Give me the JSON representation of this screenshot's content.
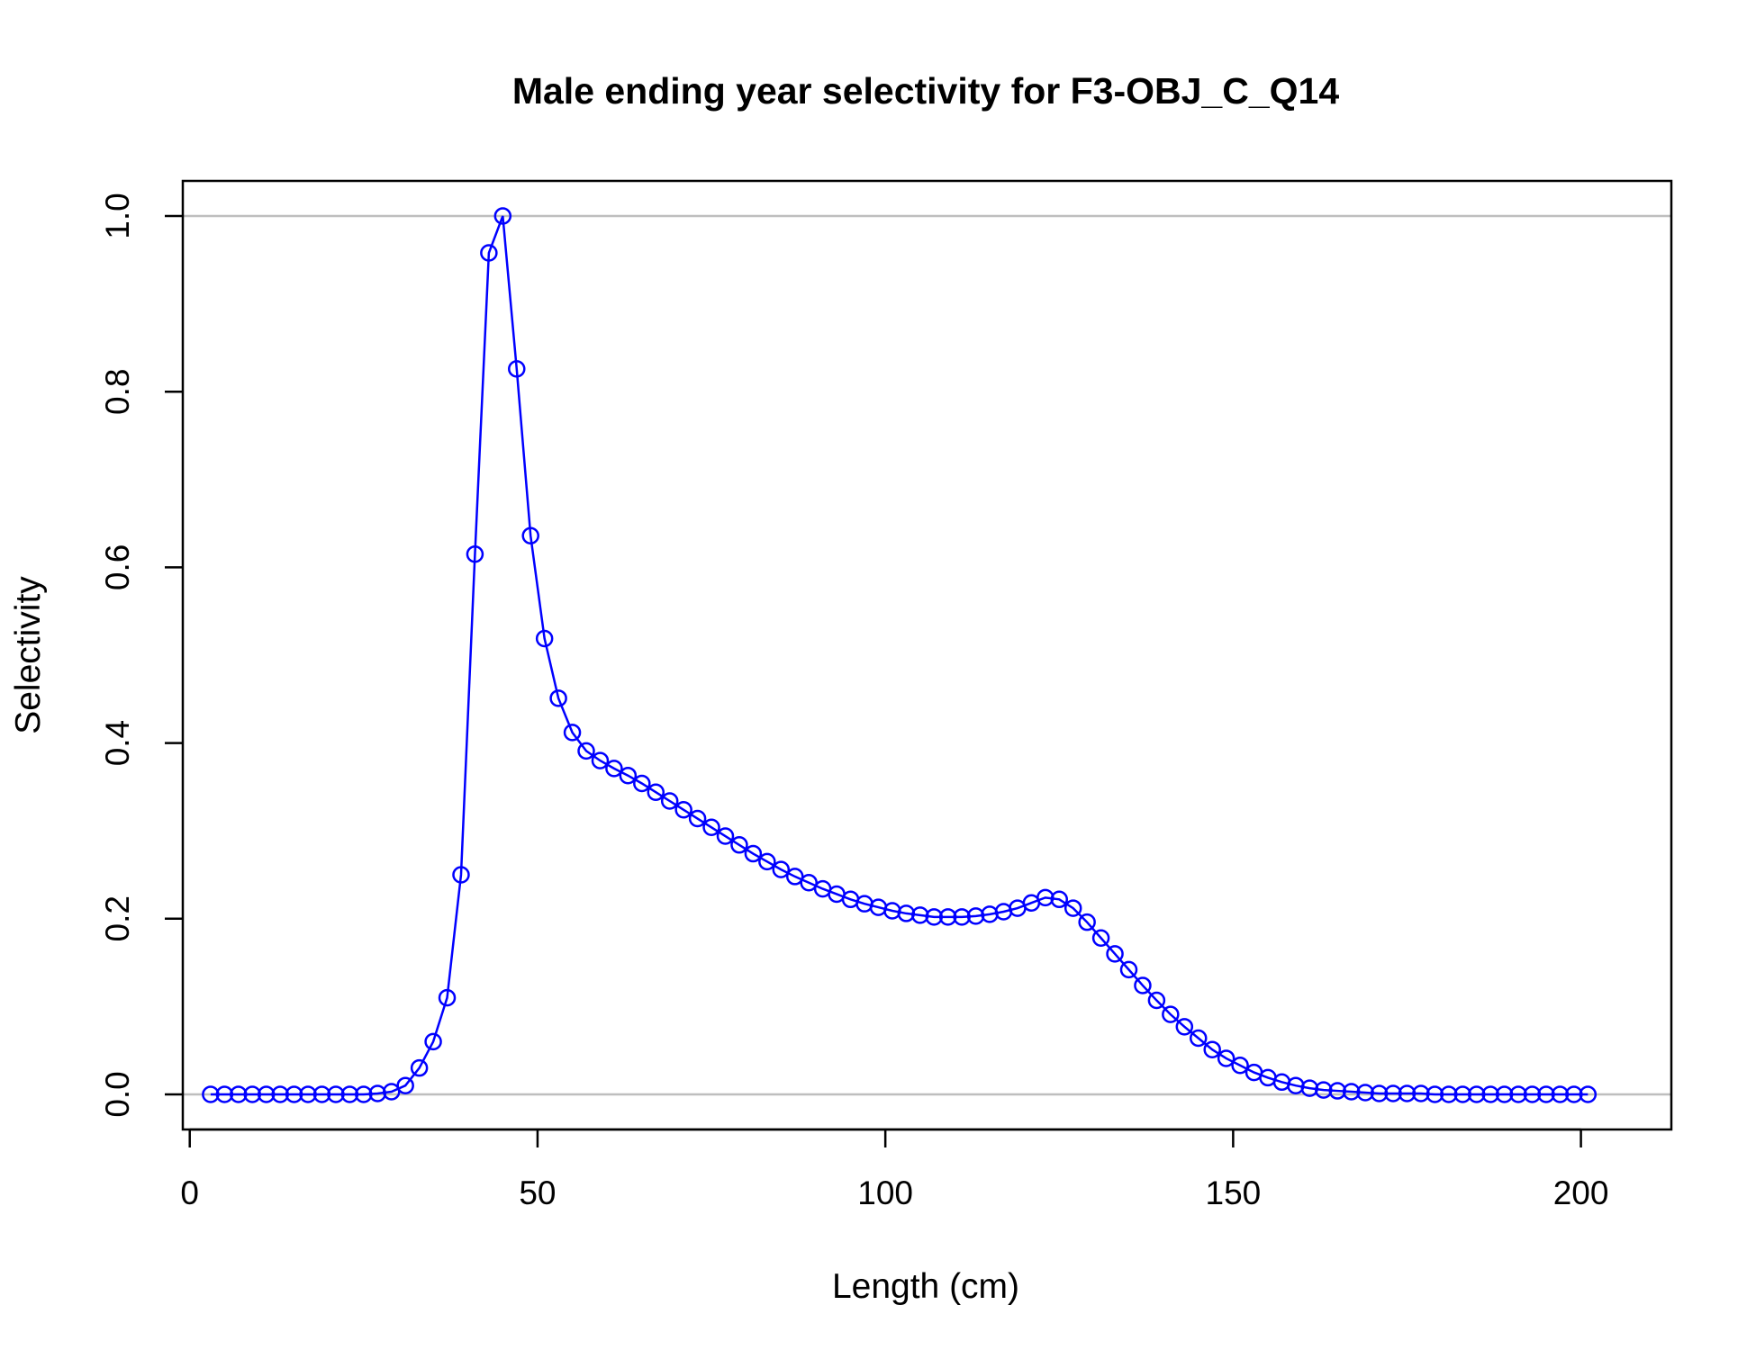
{
  "chart_data": {
    "type": "line",
    "title": "Male ending year selectivity for F3-OBJ_C_Q14",
    "xlabel": "Length (cm)",
    "ylabel": "Selectivity",
    "xlim": [
      -1,
      213
    ],
    "ylim": [
      -0.04,
      1.04
    ],
    "xticks": [
      0,
      50,
      100,
      150,
      200
    ],
    "yticks": [
      0.0,
      0.2,
      0.4,
      0.6,
      0.8,
      1.0
    ],
    "xtick_labels": [
      "0",
      "50",
      "100",
      "150",
      "200"
    ],
    "ytick_labels": [
      "0.0",
      "0.2",
      "0.4",
      "0.6",
      "0.8",
      "1.0"
    ],
    "reference_lines_y": [
      0,
      1
    ],
    "grid": false,
    "colors": {
      "series": "#0000ff",
      "reference": "#bebebe",
      "axes": "#000000"
    },
    "series": [
      {
        "marker": "open-circle",
        "x": [
          3,
          5,
          7,
          9,
          11,
          13,
          15,
          17,
          19,
          21,
          23,
          25,
          27,
          29,
          31,
          33,
          35,
          37,
          39,
          41,
          43,
          45,
          47,
          49,
          51,
          53,
          55,
          57,
          59,
          61,
          63,
          65,
          67,
          69,
          71,
          73,
          75,
          77,
          79,
          81,
          83,
          85,
          87,
          89,
          91,
          93,
          95,
          97,
          99,
          101,
          103,
          105,
          107,
          109,
          111,
          113,
          115,
          117,
          119,
          121,
          123,
          125,
          127,
          129,
          131,
          133,
          135,
          137,
          139,
          141,
          143,
          145,
          147,
          149,
          151,
          153,
          155,
          157,
          159,
          161,
          163,
          165,
          167,
          169,
          171,
          173,
          175,
          177,
          179,
          181,
          183,
          185,
          187,
          189,
          191,
          193,
          195,
          197,
          199,
          201
        ],
        "y": [
          0,
          0,
          0,
          0,
          0,
          0,
          0,
          0,
          0,
          0,
          0,
          0,
          0.001,
          0.003,
          0.01,
          0.03,
          0.06,
          0.11,
          0.25,
          0.615,
          0.958,
          1.0,
          0.826,
          0.636,
          0.519,
          0.451,
          0.412,
          0.391,
          0.38,
          0.371,
          0.363,
          0.354,
          0.344,
          0.334,
          0.324,
          0.314,
          0.304,
          0.294,
          0.284,
          0.274,
          0.265,
          0.256,
          0.248,
          0.241,
          0.234,
          0.228,
          0.222,
          0.217,
          0.213,
          0.209,
          0.206,
          0.204,
          0.202,
          0.202,
          0.202,
          0.203,
          0.205,
          0.208,
          0.212,
          0.218,
          0.224,
          0.222,
          0.212,
          0.196,
          0.178,
          0.16,
          0.142,
          0.124,
          0.107,
          0.091,
          0.077,
          0.064,
          0.051,
          0.041,
          0.033,
          0.025,
          0.019,
          0.014,
          0.01,
          0.007,
          0.005,
          0.004,
          0.003,
          0.002,
          0.001,
          0.001,
          0.001,
          0.001,
          0,
          0,
          0,
          0,
          0,
          0,
          0,
          0,
          0,
          0,
          0,
          0
        ]
      }
    ]
  }
}
